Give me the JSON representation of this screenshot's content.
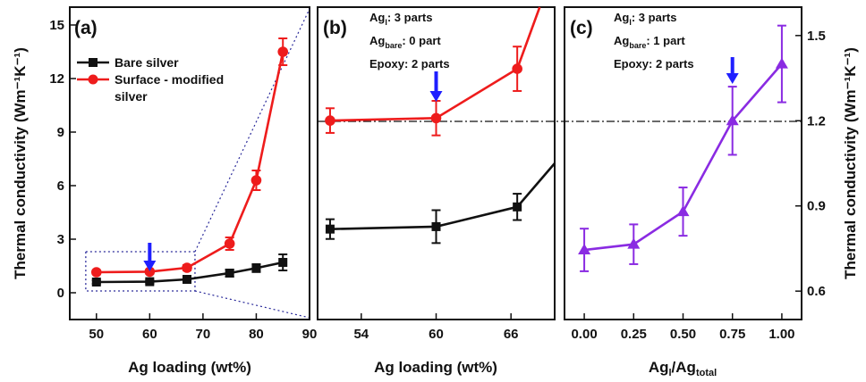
{
  "figure": {
    "ylabel_left": "Thermal conductivity (Wm⁻¹K⁻¹)",
    "ylabel_right": "Thermal conductivity (Wm⁻¹K⁻¹)"
  },
  "colors": {
    "bare": "#111111",
    "modified": "#ee1c1c",
    "ratio": "#8a2be2",
    "arrow": "#1f1fff"
  },
  "chart_data": [
    {
      "panel": "(a)",
      "type": "line",
      "xlabel": "Ag loading (wt%)",
      "ylabel": "Thermal conductivity (Wm⁻¹K⁻¹)",
      "xlim": [
        45,
        90
      ],
      "ylim": [
        -1.5,
        16
      ],
      "xticks": [
        "50",
        "60",
        "70",
        "80",
        "90"
      ],
      "yticks": [
        "0",
        "3",
        "6",
        "9",
        "12",
        "15"
      ],
      "legend": [
        "Bare silver",
        "Surface - modified",
        "silver"
      ],
      "arrow_at_x": 60,
      "series": [
        {
          "name": "Bare silver",
          "marker": "square",
          "x": [
            50,
            60,
            67,
            75,
            80,
            85
          ],
          "y": [
            0.6,
            0.62,
            0.75,
            1.1,
            1.38,
            1.7
          ],
          "err": [
            0.1,
            0.1,
            0.12,
            0.2,
            0.22,
            0.45
          ]
        },
        {
          "name": "Surface - modified silver",
          "marker": "circle",
          "x": [
            50,
            60,
            67,
            75,
            80,
            85
          ],
          "y": [
            1.15,
            1.18,
            1.4,
            2.75,
            6.3,
            13.5
          ],
          "err": [
            0.1,
            0.1,
            0.15,
            0.35,
            0.55,
            0.75
          ]
        }
      ]
    },
    {
      "panel": "(b)",
      "type": "line",
      "xlabel": "Ag loading (wt%)",
      "ylabel": "",
      "xlim": [
        50.5,
        69.5
      ],
      "ylim": [
        -0.5,
        3.3
      ],
      "xticks": [
        "54",
        "60",
        "66"
      ],
      "annotation": [
        "Ag",
        "l",
        ": 3 parts",
        "Ag",
        "bare",
        ": 0 part",
        "Epoxy: 2 parts"
      ],
      "arrow_at_x": 60,
      "series": [
        {
          "name": "Bare silver",
          "marker": "square",
          "x": [
            51.5,
            60,
            66.5,
            69.5
          ],
          "y": [
            0.6,
            0.63,
            0.87,
            1.4
          ],
          "err": [
            0.12,
            0.2,
            0.16,
            0.0
          ]
        },
        {
          "name": "Surface - modified silver",
          "marker": "circle",
          "x": [
            51.5,
            60,
            66.5,
            68.3
          ],
          "y": [
            1.92,
            1.95,
            2.55,
            3.3
          ],
          "err": [
            0.15,
            0.21,
            0.27,
            0.0
          ]
        }
      ]
    },
    {
      "panel": "(c)",
      "type": "line",
      "xlabel": "Ag_l/Ag_total",
      "ylabel": "Thermal conductivity (Wm⁻¹K⁻¹)",
      "xlim": [
        -0.1,
        1.1
      ],
      "ylim": [
        0.5,
        1.6
      ],
      "xticks": [
        "0.00",
        "0.25",
        "0.50",
        "0.75",
        "1.00"
      ],
      "yticks": [
        "0.6",
        "0.9",
        "1.2",
        "1.5"
      ],
      "annotation": [
        "Ag",
        "l",
        ": 3 parts",
        "Ag",
        "bare",
        ": 1 part",
        "Epoxy: 2 parts"
      ],
      "arrow_at_x": 0.75,
      "hline_y": 1.2,
      "series": [
        {
          "name": "Ag_l/Ag_total",
          "marker": "triangle",
          "x": [
            0.0,
            0.25,
            0.5,
            0.75,
            1.0
          ],
          "y": [
            0.745,
            0.765,
            0.88,
            1.2,
            1.4
          ],
          "err": [
            0.075,
            0.07,
            0.085,
            0.12,
            0.135
          ]
        }
      ]
    }
  ]
}
